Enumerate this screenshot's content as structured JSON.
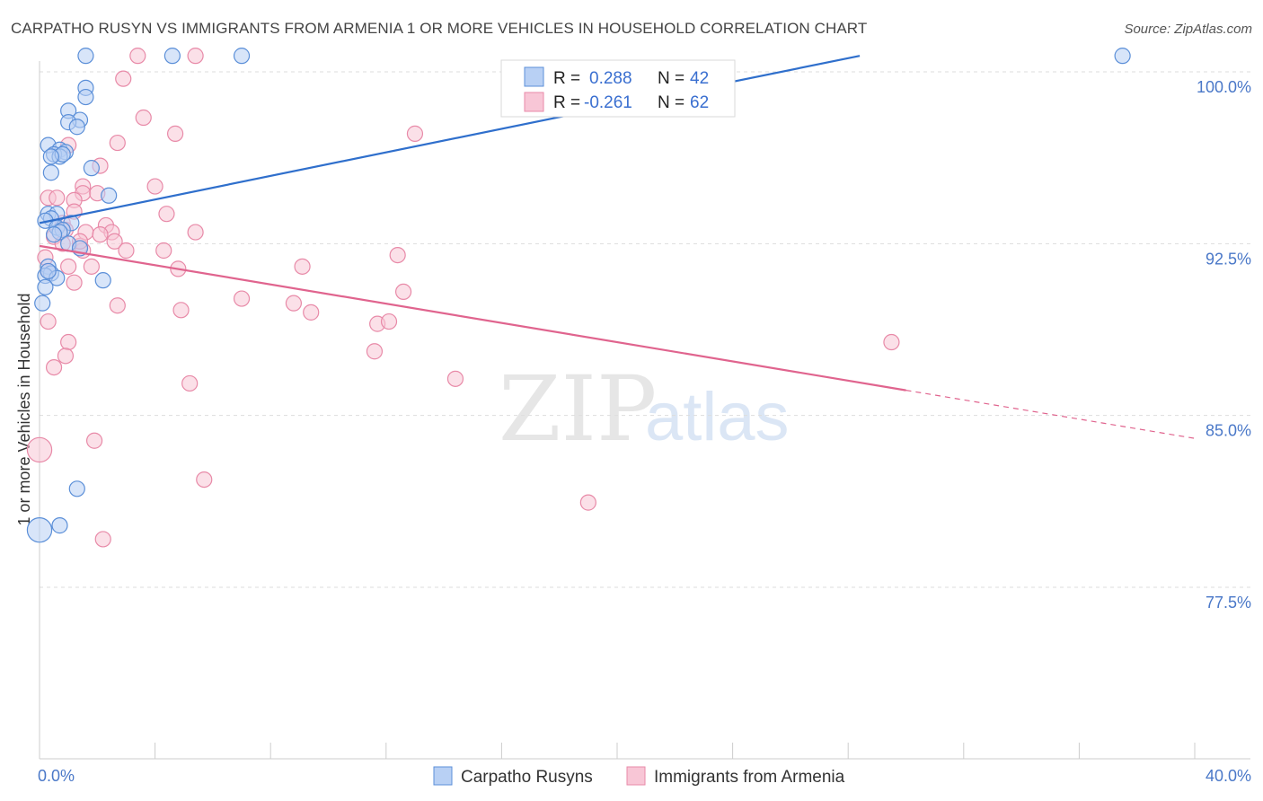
{
  "header": {
    "title": "CARPATHO RUSYN VS IMMIGRANTS FROM ARMENIA 1 OR MORE VEHICLES IN HOUSEHOLD CORRELATION CHART",
    "source": "Source: ZipAtlas.com"
  },
  "watermark": {
    "zip": "ZIP",
    "atlas": "atlas"
  },
  "colors": {
    "blue_fill": "#b8d0f4",
    "blue_stroke": "#5b8fd8",
    "blue_line": "#2f6fcc",
    "pink_fill": "#f8c6d6",
    "pink_stroke": "#e88aa8",
    "pink_line": "#e0648e",
    "tick_text": "#4a78c8",
    "grid": "#dddddd"
  },
  "legend": {
    "rows": [
      {
        "r_label": "R =",
        "r_value": "0.288",
        "n_label": "N =",
        "n_value": "42"
      },
      {
        "r_label": "R =",
        "r_value": "-0.261",
        "n_label": "N =",
        "n_value": "62"
      }
    ]
  },
  "chart_data": {
    "type": "scatter",
    "title": "CARPATHO RUSYN VS IMMIGRANTS FROM ARMENIA 1 OR MORE VEHICLES IN HOUSEHOLD CORRELATION CHART",
    "xlabel": "",
    "ylabel": "1 or more Vehicles in Household",
    "xlim": [
      0,
      40
    ],
    "ylim": [
      70,
      100.7
    ],
    "x_tick_labels": [
      "0.0%",
      "40.0%"
    ],
    "y_ticks": [
      {
        "value": 100.0,
        "label": "100.0%"
      },
      {
        "value": 92.5,
        "label": "92.5%"
      },
      {
        "value": 85.0,
        "label": "85.0%"
      },
      {
        "value": 77.5,
        "label": "77.5%"
      }
    ],
    "grid": true,
    "series": [
      {
        "name": "Carpatho Rusyns",
        "color": "blue",
        "r": 0.288,
        "n": 42,
        "trend": {
          "x0": 0,
          "y0": 93.4,
          "x1": 28.4,
          "y1": 100.7,
          "x_end": 28.4,
          "dashed_to": 28.4
        },
        "points": [
          [
            1.6,
            100.7,
            1
          ],
          [
            4.6,
            100.7,
            1
          ],
          [
            7,
            100.7,
            1
          ],
          [
            37.5,
            100.7,
            1
          ],
          [
            1.6,
            99.3,
            1
          ],
          [
            1.6,
            98.9,
            1
          ],
          [
            1.0,
            98.3,
            1
          ],
          [
            1.4,
            97.9,
            1
          ],
          [
            1.0,
            97.8,
            1
          ],
          [
            1.3,
            97.6,
            1
          ],
          [
            0.3,
            96.8,
            1
          ],
          [
            0.7,
            96.6,
            1
          ],
          [
            0.9,
            96.5,
            1
          ],
          [
            0.5,
            96.4,
            1
          ],
          [
            0.7,
            96.3,
            1
          ],
          [
            0.8,
            96.4,
            1
          ],
          [
            0.4,
            96.3,
            1
          ],
          [
            1.8,
            95.8,
            1
          ],
          [
            0.4,
            95.6,
            1
          ],
          [
            2.4,
            94.6,
            1
          ],
          [
            0.3,
            93.8,
            1
          ],
          [
            0.6,
            93.8,
            1
          ],
          [
            0.4,
            93.6,
            1
          ],
          [
            0.2,
            93.5,
            1
          ],
          [
            0.6,
            93.2,
            1
          ],
          [
            1.1,
            93.4,
            1
          ],
          [
            0.8,
            93.1,
            1
          ],
          [
            0.7,
            93.0,
            1
          ],
          [
            1.0,
            92.5,
            1
          ],
          [
            1.4,
            92.3,
            1
          ],
          [
            0.3,
            91.5,
            1
          ],
          [
            0.4,
            91.2,
            1
          ],
          [
            0.2,
            91.1,
            1
          ],
          [
            0.6,
            91.0,
            1
          ],
          [
            2.2,
            90.9,
            1
          ],
          [
            0.2,
            90.6,
            1
          ],
          [
            0.1,
            89.9,
            1
          ],
          [
            1.3,
            81.8,
            1
          ],
          [
            0.7,
            80.2,
            1
          ],
          [
            0.0,
            80.0,
            1.6
          ],
          [
            0.3,
            91.3,
            1
          ],
          [
            0.5,
            92.9,
            1
          ]
        ]
      },
      {
        "name": "Immigrants from Armenia",
        "color": "pink",
        "r": -0.261,
        "n": 62,
        "trend": {
          "x0": 0,
          "y0": 92.4,
          "x1": 30.0,
          "y1": 86.1,
          "x_end": 40,
          "y_end": 84.0
        },
        "points": [
          [
            3.4,
            100.7,
            1
          ],
          [
            5.4,
            100.7,
            1
          ],
          [
            2.9,
            99.7,
            1
          ],
          [
            3.6,
            98.0,
            1
          ],
          [
            4.7,
            97.3,
            1
          ],
          [
            13.0,
            97.3,
            1
          ],
          [
            2.7,
            96.9,
            1
          ],
          [
            1.0,
            96.8,
            1
          ],
          [
            2.1,
            95.9,
            1
          ],
          [
            4.0,
            95.0,
            1
          ],
          [
            1.5,
            95.0,
            1
          ],
          [
            1.5,
            94.7,
            1
          ],
          [
            2.0,
            94.7,
            1
          ],
          [
            0.3,
            94.5,
            1
          ],
          [
            0.6,
            94.5,
            1
          ],
          [
            1.2,
            94.4,
            1
          ],
          [
            1.2,
            93.9,
            1
          ],
          [
            4.4,
            93.8,
            1
          ],
          [
            0.8,
            93.4,
            1
          ],
          [
            2.3,
            93.3,
            1
          ],
          [
            0.9,
            93.1,
            1
          ],
          [
            1.6,
            93.0,
            1
          ],
          [
            2.5,
            93.0,
            1
          ],
          [
            5.4,
            93.0,
            1
          ],
          [
            2.1,
            92.9,
            1
          ],
          [
            0.5,
            92.8,
            1
          ],
          [
            2.6,
            92.6,
            1
          ],
          [
            0.8,
            92.5,
            1
          ],
          [
            1.4,
            92.4,
            1
          ],
          [
            1.5,
            92.2,
            1
          ],
          [
            3.0,
            92.2,
            1
          ],
          [
            4.3,
            92.2,
            1
          ],
          [
            12.4,
            92.0,
            1
          ],
          [
            0.2,
            91.9,
            1
          ],
          [
            0.3,
            91.3,
            1
          ],
          [
            1.0,
            91.5,
            1
          ],
          [
            1.8,
            91.5,
            1
          ],
          [
            9.1,
            91.5,
            1
          ],
          [
            4.8,
            91.4,
            1
          ],
          [
            1.2,
            90.8,
            1
          ],
          [
            12.6,
            90.4,
            1
          ],
          [
            7.0,
            90.1,
            1
          ],
          [
            8.8,
            89.9,
            1
          ],
          [
            2.7,
            89.8,
            1
          ],
          [
            4.9,
            89.6,
            1
          ],
          [
            9.4,
            89.5,
            1
          ],
          [
            0.3,
            89.1,
            1
          ],
          [
            11.7,
            89.0,
            1
          ],
          [
            12.1,
            89.1,
            1
          ],
          [
            1.0,
            88.2,
            1
          ],
          [
            29.5,
            88.2,
            1
          ],
          [
            11.6,
            87.8,
            1
          ],
          [
            0.9,
            87.6,
            1
          ],
          [
            0.5,
            87.1,
            1
          ],
          [
            14.4,
            86.6,
            1
          ],
          [
            5.2,
            86.4,
            1
          ],
          [
            1.9,
            83.9,
            1
          ],
          [
            0.0,
            83.5,
            1.6
          ],
          [
            5.7,
            82.2,
            1
          ],
          [
            19.0,
            81.2,
            1
          ],
          [
            2.2,
            79.6,
            1
          ],
          [
            1.4,
            92.6,
            1
          ]
        ]
      }
    ]
  },
  "bottom_legend": {
    "items": [
      {
        "label": "Carpatho Rusyns",
        "color": "blue"
      },
      {
        "label": "Immigrants from Armenia",
        "color": "pink"
      }
    ]
  }
}
